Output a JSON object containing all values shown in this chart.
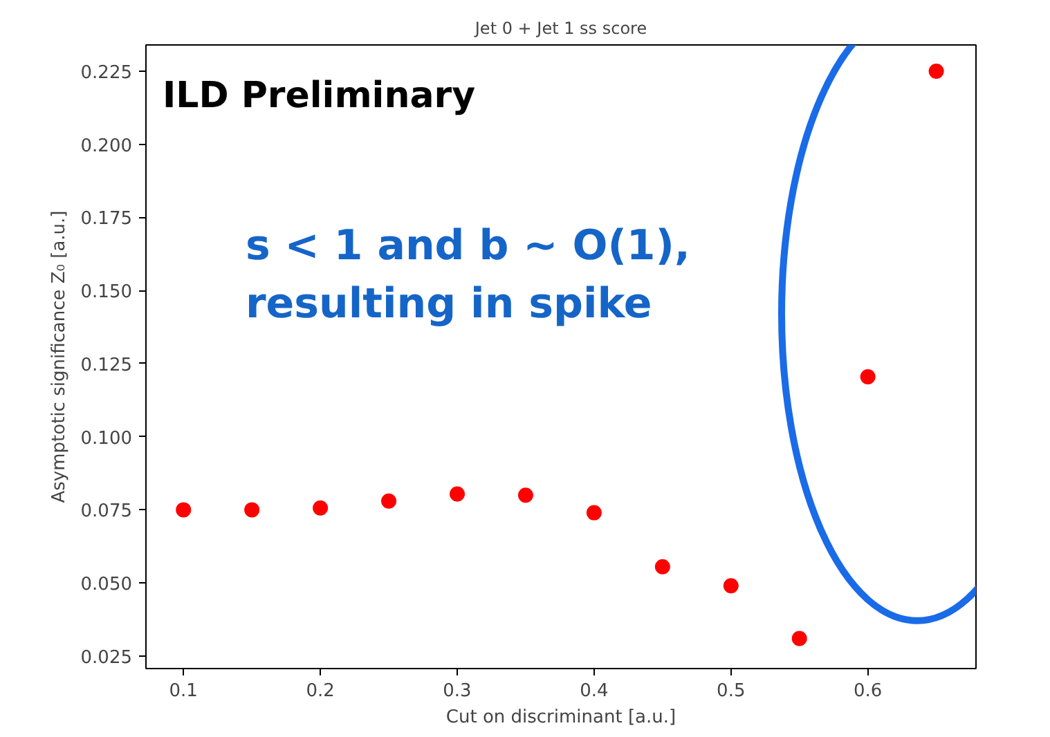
{
  "chart_data": {
    "type": "scatter",
    "title": "Jet 0 + Jet 1 ss score",
    "xlabel": "Cut on discriminant [a.u.]",
    "ylabel": "Asymptotic significance Z₀ [a.u.]",
    "x": [
      0.1,
      0.15,
      0.2,
      0.25,
      0.3,
      0.35,
      0.4,
      0.45,
      0.5,
      0.55,
      0.6,
      0.65
    ],
    "series": [
      {
        "color": "#ff0000",
        "values": [
          0.075,
          0.075,
          0.0756,
          0.078,
          0.0804,
          0.08,
          0.074,
          0.0555,
          0.049,
          0.031,
          0.1205,
          0.225
        ]
      }
    ],
    "marker": "circle",
    "grid": false,
    "xlim": [
      0.0726,
      0.679
    ],
    "ylim": [
      0.0207,
      0.234
    ],
    "xticks": [
      0.1,
      0.2,
      0.3,
      0.4,
      0.5,
      0.6
    ],
    "yticks": [
      {
        "value": 0.025,
        "label": "0.025"
      },
      {
        "value": 0.05,
        "label": "0.050"
      },
      {
        "value": 0.075,
        "label": "0.075"
      },
      {
        "value": 0.1,
        "label": "0.100"
      },
      {
        "value": 0.125,
        "label": "0.125"
      },
      {
        "value": 0.15,
        "label": "0.150"
      },
      {
        "value": 0.175,
        "label": "0.175"
      },
      {
        "value": 0.2,
        "label": "0.200"
      },
      {
        "value": 0.225,
        "label": "0.225"
      }
    ],
    "annotations": [
      "ILD Preliminary",
      "s < 1 and b ~ O(1),\nresulting in spike"
    ]
  }
}
